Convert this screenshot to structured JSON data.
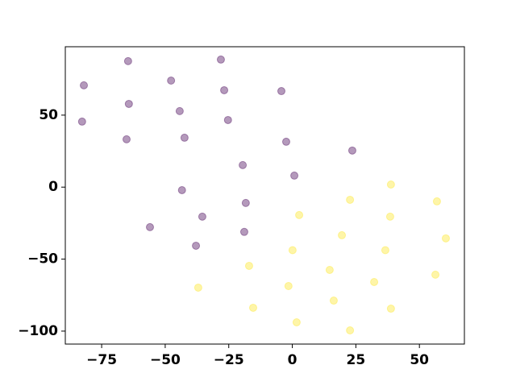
{
  "chart_data": {
    "type": "scatter",
    "xlim": [
      -89.3,
      67.7
    ],
    "ylim": [
      -109,
      97.5
    ],
    "xticks": [
      {
        "value": -75,
        "label": "−75"
      },
      {
        "value": -50,
        "label": "−50"
      },
      {
        "value": -25,
        "label": "−25"
      },
      0,
      25,
      50
    ],
    "yticks": [
      {
        "value": -100,
        "label": "−100"
      },
      {
        "value": -50,
        "label": "−50"
      },
      0,
      50
    ],
    "alpha": 0.4,
    "series": [
      {
        "color": "#440154",
        "x": [
          -82.0,
          -64.6,
          -28.1,
          -47.7,
          -26.8,
          -4.3,
          -64.3,
          -44.3,
          -82.7,
          -25.3,
          -65.2,
          -42.4,
          -2.4,
          23.6,
          -19.5,
          0.8,
          -43.4,
          -18.3,
          -35.4,
          -56.0,
          -18.9,
          -37.9
        ],
        "values": [
          70.7,
          87.5,
          88.6,
          74.0,
          67.3,
          66.7,
          57.8,
          52.8,
          45.5,
          46.6,
          33.2,
          34.3,
          31.5,
          25.4,
          15.3,
          8.0,
          -2.1,
          -11.0,
          -20.5,
          -27.8,
          -31.1,
          -40.7
        ]
      },
      {
        "color": "#fde725",
        "x": [
          38.8,
          22.7,
          56.9,
          2.7,
          38.5,
          19.5,
          60.4,
          0.1,
          36.6,
          -17.0,
          14.7,
          32.2,
          56.3,
          -37.0,
          -1.5,
          16.3,
          -15.4,
          38.8,
          1.7,
          22.7
        ],
        "values": [
          1.8,
          -8.8,
          -9.9,
          -19.4,
          -20.5,
          -33.4,
          -35.6,
          -43.8,
          -43.8,
          -54.7,
          -57.5,
          -65.9,
          -60.8,
          -69.8,
          -68.7,
          -78.8,
          -83.8,
          -84.4,
          -93.9,
          -99.5
        ]
      }
    ]
  }
}
